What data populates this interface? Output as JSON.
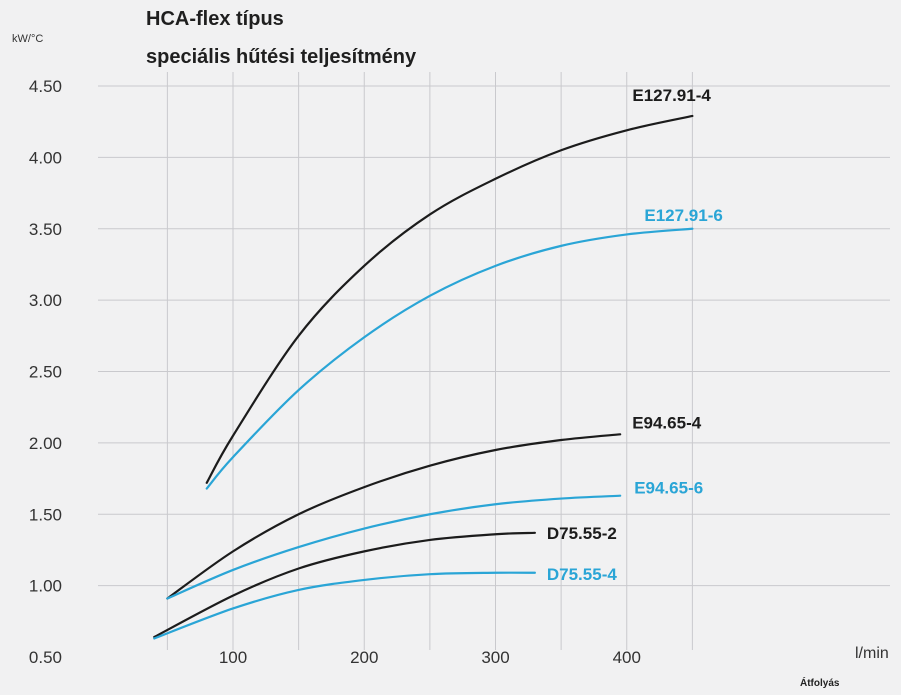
{
  "title_lines": [
    "HCA-flex típus",
    "speciális hűtési teljesítmény"
  ],
  "colors": {
    "background": "#f1f1f2",
    "grid": "#c9c9cd",
    "black_series": "#1c1c1c",
    "blue_series": "#2aa5d6"
  },
  "chart_data": {
    "type": "line",
    "title": "HCA-flex típus speciális hűtési teljesítmény",
    "ylabel": "kW/°C",
    "xlabel": "Átfolyás",
    "xunit": "l/min",
    "xlim": [
      0,
      500
    ],
    "ylim": [
      0.5,
      4.5
    ],
    "x_ticks": [
      100,
      200,
      300,
      400
    ],
    "y_ticks": [
      "0.50",
      "1.00",
      "1.50",
      "2.00",
      "2.50",
      "3.00",
      "3.50",
      "4.00",
      "4.50"
    ],
    "grid": true,
    "series": [
      {
        "name": "E127.91-4",
        "color": "#1c1c1c",
        "x": [
          80,
          100,
          150,
          200,
          250,
          300,
          350,
          400,
          450
        ],
        "y": [
          1.72,
          2.05,
          2.75,
          3.24,
          3.6,
          3.85,
          4.05,
          4.19,
          4.29
        ]
      },
      {
        "name": "E127.91-6",
        "color": "#2aa5d6",
        "x": [
          80,
          100,
          150,
          200,
          250,
          300,
          350,
          400,
          450
        ],
        "y": [
          1.68,
          1.9,
          2.37,
          2.74,
          3.03,
          3.24,
          3.38,
          3.46,
          3.5
        ]
      },
      {
        "name": "E94.65-4",
        "color": "#1c1c1c",
        "x": [
          50,
          100,
          150,
          200,
          250,
          300,
          350,
          395
        ],
        "y": [
          0.91,
          1.24,
          1.5,
          1.69,
          1.84,
          1.95,
          2.02,
          2.06
        ]
      },
      {
        "name": "E94.65-6",
        "color": "#2aa5d6",
        "x": [
          50,
          100,
          150,
          200,
          250,
          300,
          350,
          395
        ],
        "y": [
          0.91,
          1.11,
          1.27,
          1.4,
          1.5,
          1.57,
          1.61,
          1.63
        ]
      },
      {
        "name": "D75.55-2",
        "color": "#1c1c1c",
        "x": [
          40,
          100,
          150,
          200,
          250,
          300,
          330
        ],
        "y": [
          0.64,
          0.93,
          1.12,
          1.24,
          1.32,
          1.36,
          1.37
        ]
      },
      {
        "name": "D75.55-4",
        "color": "#2aa5d6",
        "x": [
          40,
          100,
          150,
          200,
          250,
          300,
          330
        ],
        "y": [
          0.63,
          0.84,
          0.97,
          1.04,
          1.08,
          1.09,
          1.09
        ]
      }
    ]
  }
}
